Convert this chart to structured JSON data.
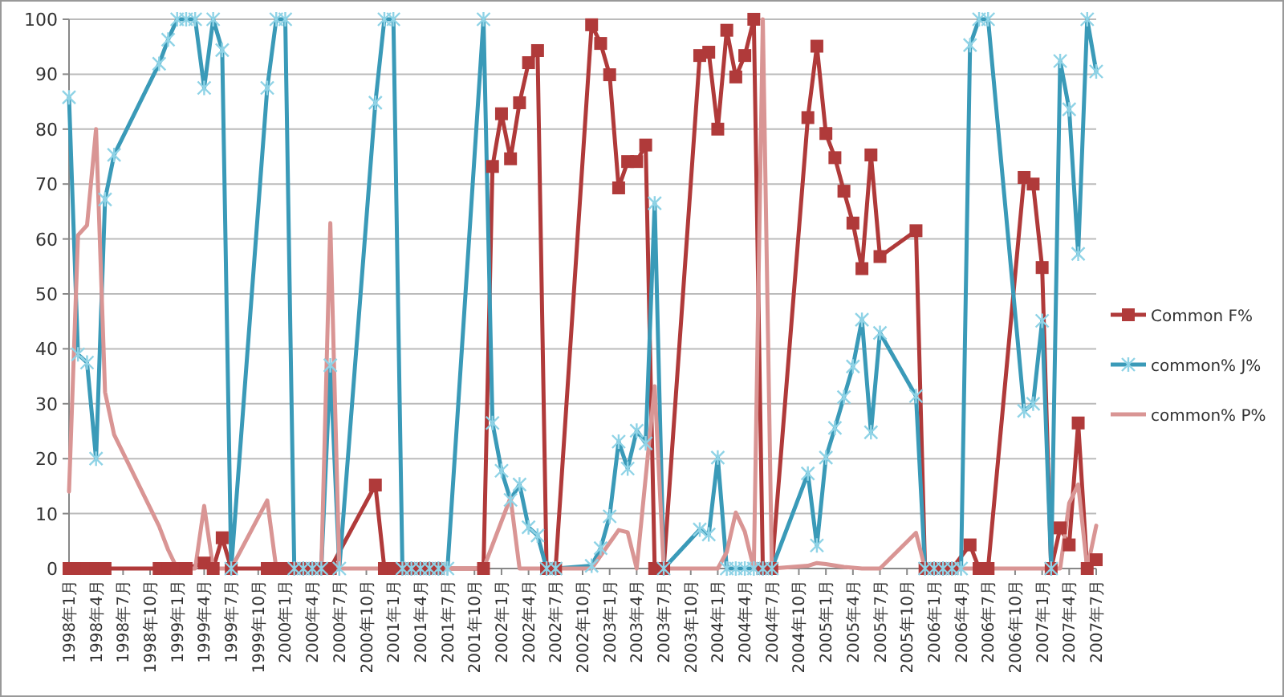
{
  "chart_data": {
    "type": "line",
    "xlim": [
      "1998-01",
      "2007-07"
    ],
    "xticks": [
      {
        "value": "1998-01",
        "label": "1998年1月"
      },
      {
        "value": "1998-04",
        "label": "1998年4月"
      },
      {
        "value": "1998-07",
        "label": "1998年7月"
      },
      {
        "value": "1998-10",
        "label": "1998年10月"
      },
      {
        "value": "1999-01",
        "label": "1999年1月"
      },
      {
        "value": "1999-04",
        "label": "1999年4月"
      },
      {
        "value": "1999-07",
        "label": "1999年7月"
      },
      {
        "value": "1999-10",
        "label": "1999年10月"
      },
      {
        "value": "2000-01",
        "label": "2000年1月"
      },
      {
        "value": "2000-04",
        "label": "2000年4月"
      },
      {
        "value": "2000-07",
        "label": "2000年7月"
      },
      {
        "value": "2000-10",
        "label": "2000年10月"
      },
      {
        "value": "2001-01",
        "label": "2001年1月"
      },
      {
        "value": "2001-04",
        "label": "2001年4月"
      },
      {
        "value": "2001-07",
        "label": "2001年7月"
      },
      {
        "value": "2001-10",
        "label": "2001年10月"
      },
      {
        "value": "2002-01",
        "label": "2002年1月"
      },
      {
        "value": "2002-04",
        "label": "2002年4月"
      },
      {
        "value": "2002-07",
        "label": "2002年7月"
      },
      {
        "value": "2002-10",
        "label": "2002年10月"
      },
      {
        "value": "2003-01",
        "label": "2003年1月"
      },
      {
        "value": "2003-04",
        "label": "2003年4月"
      },
      {
        "value": "2003-07",
        "label": "2003年7月"
      },
      {
        "value": "2003-10",
        "label": "2003年10月"
      },
      {
        "value": "2004-01",
        "label": "2004年1月"
      },
      {
        "value": "2004-04",
        "label": "2004年4月"
      },
      {
        "value": "2004-07",
        "label": "2004年7月"
      },
      {
        "value": "2004-10",
        "label": "2004年10月"
      },
      {
        "value": "2005-01",
        "label": "2005年1月"
      },
      {
        "value": "2005-04",
        "label": "2005年4月"
      },
      {
        "value": "2005-07",
        "label": "2005年7月"
      },
      {
        "value": "2005-10",
        "label": "2005年10月"
      },
      {
        "value": "2006-01",
        "label": "2006年1月"
      },
      {
        "value": "2006-04",
        "label": "2006年4月"
      },
      {
        "value": "2006-07",
        "label": "2006年7月"
      },
      {
        "value": "2006-10",
        "label": "2006年10月"
      },
      {
        "value": "2007-01",
        "label": "2007年1月"
      },
      {
        "value": "2007-04",
        "label": "2007年4月"
      },
      {
        "value": "2007-07",
        "label": "2007年7月"
      }
    ],
    "ylim": [
      0,
      100
    ],
    "yticks": [
      0,
      10,
      20,
      30,
      40,
      50,
      60,
      70,
      80,
      90,
      100
    ],
    "grid": "y",
    "legend": "right",
    "series": [
      {
        "name": "Common F%",
        "color": "#b03a3a",
        "marker": "square",
        "x": [
          "1998-01",
          "1998-02",
          "1998-03",
          "1998-04",
          "1998-05",
          "1998-11",
          "1998-12",
          "1999-01",
          "1999-02",
          "1999-04",
          "1999-05",
          "1999-06",
          "1999-07",
          "1999-11",
          "1999-12",
          "2000-01",
          "2000-02",
          "2000-03",
          "2000-04",
          "2000-05",
          "2000-06",
          "2000-11",
          "2000-12",
          "2001-01",
          "2001-02",
          "2001-03",
          "2001-04",
          "2001-05",
          "2001-06",
          "2001-11",
          "2001-12",
          "2002-01",
          "2002-02",
          "2002-03",
          "2002-04",
          "2002-05",
          "2002-06",
          "2002-07",
          "2002-11",
          "2002-12",
          "2003-01",
          "2003-02",
          "2003-03",
          "2003-04",
          "2003-05",
          "2003-06",
          "2003-07",
          "2003-11",
          "2003-12",
          "2004-01",
          "2004-02",
          "2004-03",
          "2004-04",
          "2004-05",
          "2004-06",
          "2004-07",
          "2004-11",
          "2004-12",
          "2005-01",
          "2005-02",
          "2005-03",
          "2005-04",
          "2005-05",
          "2005-06",
          "2005-07",
          "2005-11",
          "2005-12",
          "2006-01",
          "2006-02",
          "2006-03",
          "2006-05",
          "2006-06",
          "2006-07",
          "2006-11",
          "2006-12",
          "2007-01",
          "2007-02",
          "2007-03",
          "2007-04",
          "2007-05",
          "2007-06",
          "2007-07"
        ],
        "values": [
          0,
          0,
          0,
          0,
          0,
          0,
          0,
          0,
          0,
          1,
          0,
          5.6,
          0,
          0,
          0,
          0,
          0,
          0,
          0,
          0,
          0,
          15.2,
          0,
          0,
          0,
          0,
          0,
          0,
          0,
          0,
          73.2,
          82.8,
          74.6,
          84.8,
          92.1,
          94.3,
          0,
          0,
          99,
          95.6,
          89.9,
          69.3,
          74.1,
          74.1,
          77.1,
          0,
          0,
          93.4,
          94,
          80,
          98,
          89.5,
          93.4,
          100,
          0,
          0,
          82.1,
          95.1,
          79.2,
          74.8,
          68.7,
          62.9,
          54.6,
          75.3,
          56.8,
          61.5,
          0,
          0,
          0,
          0,
          4.3,
          0,
          0,
          71.2,
          70,
          54.8,
          0,
          7.4,
          4.3,
          26.5,
          0,
          1.6
        ]
      },
      {
        "name": "common% J%",
        "color": "#3a9ab8",
        "marker": "cross",
        "x": [
          "1998-01",
          "1998-02",
          "1998-03",
          "1998-04",
          "1998-05",
          "1998-06",
          "1998-11",
          "1998-12",
          "1999-01",
          "1999-02",
          "1999-03",
          "1999-04",
          "1999-05",
          "1999-06",
          "1999-07",
          "1999-11",
          "1999-12",
          "2000-01",
          "2000-02",
          "2000-03",
          "2000-04",
          "2000-05",
          "2000-06",
          "2000-07",
          "2000-11",
          "2000-12",
          "2001-01",
          "2001-02",
          "2001-03",
          "2001-04",
          "2001-05",
          "2001-06",
          "2001-07",
          "2001-11",
          "2001-12",
          "2002-01",
          "2002-02",
          "2002-03",
          "2002-04",
          "2002-05",
          "2002-06",
          "2002-07",
          "2002-11",
          "2002-12",
          "2003-01",
          "2003-02",
          "2003-03",
          "2003-04",
          "2003-05",
          "2003-06",
          "2003-07",
          "2003-11",
          "2003-12",
          "2004-01",
          "2004-02",
          "2004-03",
          "2004-04",
          "2004-05",
          "2004-06",
          "2004-07",
          "2004-11",
          "2004-12",
          "2005-01",
          "2005-02",
          "2005-03",
          "2005-04",
          "2005-05",
          "2005-06",
          "2005-07",
          "2005-11",
          "2005-12",
          "2006-01",
          "2006-02",
          "2006-03",
          "2006-04",
          "2006-05",
          "2006-06",
          "2006-07",
          "2006-11",
          "2006-12",
          "2007-01",
          "2007-02",
          "2007-03",
          "2007-04",
          "2007-05",
          "2007-06",
          "2007-07"
        ],
        "values": [
          85.8,
          39,
          37.5,
          20,
          67.2,
          75.3,
          91.9,
          96.3,
          100,
          100,
          100,
          87.5,
          100,
          94.4,
          0,
          87.5,
          100,
          100,
          0,
          0,
          0,
          0,
          37,
          0,
          84.8,
          100,
          100,
          0,
          0,
          0,
          0,
          0,
          0,
          100,
          26.5,
          17.8,
          12.5,
          15.3,
          7.5,
          6,
          0,
          0,
          0.5,
          3.7,
          9.5,
          23.1,
          18.2,
          25.1,
          22.8,
          66.5,
          0,
          7.1,
          6.2,
          20.2,
          0,
          0,
          0,
          0,
          0,
          0,
          17.3,
          4.2,
          20.2,
          25.6,
          31.2,
          36.8,
          45.3,
          24.8,
          42.9,
          31.4,
          0,
          0,
          0,
          0,
          0,
          95.3,
          100,
          100,
          28.7,
          30,
          45.1,
          0,
          92.4,
          83.6,
          57.3,
          100,
          90.5
        ]
      },
      {
        "name": "common% P%",
        "color": "#d99594",
        "marker": "none",
        "x": [
          "1998-01",
          "1998-02",
          "1998-03",
          "1998-04",
          "1998-05",
          "1998-06",
          "1998-11",
          "1998-12",
          "1999-01",
          "1999-02",
          "1999-03",
          "1999-04",
          "1999-05",
          "1999-06",
          "1999-07",
          "1999-11",
          "1999-12",
          "2000-05",
          "2000-06",
          "2000-07",
          "2000-11",
          "2001-06",
          "2001-11",
          "2002-02",
          "2002-03",
          "2002-06",
          "2002-11",
          "2003-02",
          "2003-03",
          "2003-04",
          "2003-06",
          "2003-07",
          "2003-11",
          "2004-01",
          "2004-02",
          "2004-03",
          "2004-04",
          "2004-05",
          "2004-06",
          "2004-07",
          "2004-11",
          "2004-12",
          "2005-01",
          "2005-03",
          "2005-05",
          "2005-07",
          "2005-11",
          "2005-12",
          "2006-03",
          "2006-11",
          "2007-03",
          "2007-04",
          "2007-05",
          "2007-06",
          "2007-07"
        ],
        "values": [
          14,
          60.7,
          62.5,
          80,
          32.1,
          24.4,
          7.7,
          3.4,
          0,
          0,
          0,
          11.4,
          0,
          0,
          0,
          12.4,
          0,
          0,
          62.9,
          0,
          0,
          0,
          0,
          12.9,
          0,
          0,
          0,
          7,
          6.6,
          0,
          33.2,
          0,
          0,
          0,
          3,
          10.2,
          6.7,
          0,
          100,
          0,
          0.5,
          1,
          0.8,
          0.3,
          0,
          0,
          6.5,
          0,
          0,
          0,
          0,
          11.9,
          15.3,
          0,
          7.8
        ]
      }
    ]
  }
}
